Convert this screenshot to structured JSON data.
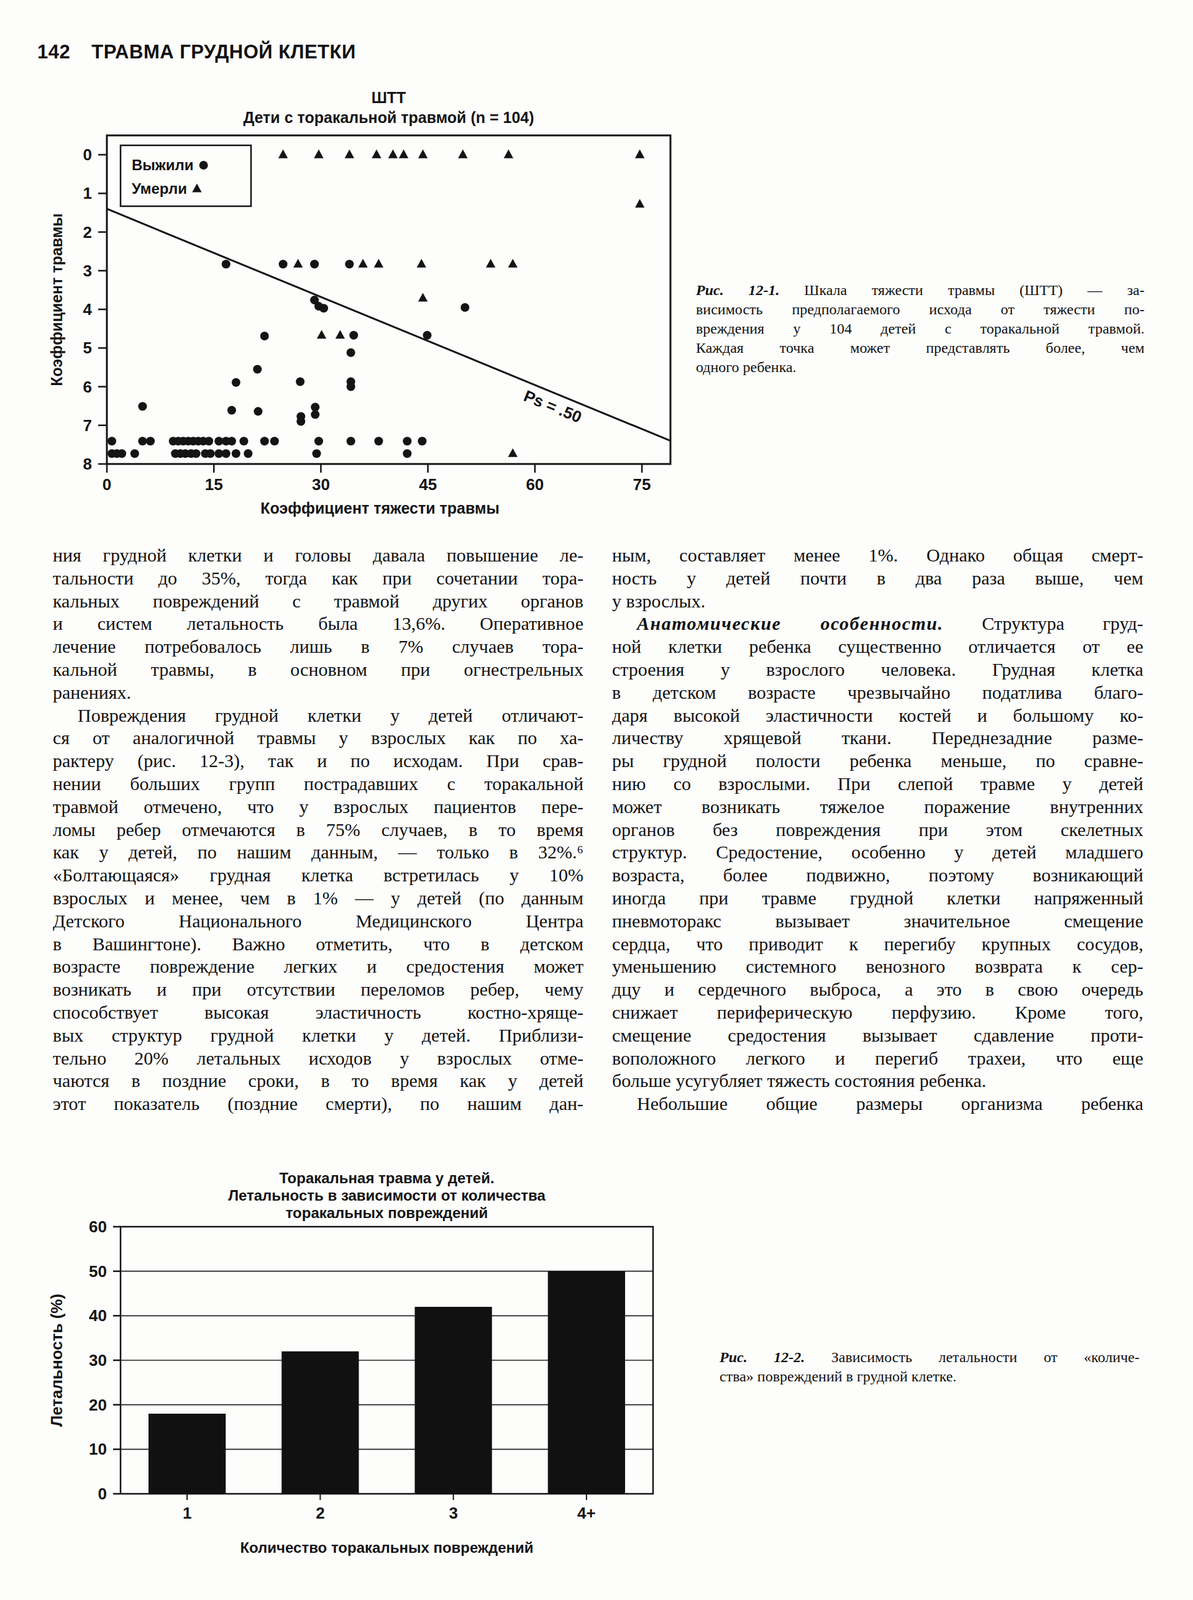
{
  "page": {
    "number": "142",
    "running_head": "ТРАВМА ГРУДНОЙ КЛЕТКИ"
  },
  "chart_data": [
    {
      "type": "scatter",
      "title": "ШТТ",
      "subtitle": "Дети с торакальной травмой (n = 104)",
      "x_label": "Коэффициент тяжести травмы",
      "y_label": "Коэффициент травмы",
      "xlim": [
        0,
        79
      ],
      "xticks": [
        0,
        15,
        30,
        45,
        60,
        75
      ],
      "ylim": [
        8,
        -0.5
      ],
      "yticks": [
        0,
        1,
        2,
        3,
        4,
        5,
        6,
        7,
        8
      ],
      "legend": "upper left",
      "series": [
        {
          "name": "Выжили",
          "marker": "circle",
          "color": "#141414",
          "x": [
            16.7,
            24.7,
            29.1,
            34.0,
            29.1,
            29.7,
            30.4,
            50.2,
            22.1,
            34.6,
            44.9,
            34.2,
            21.1,
            18.1,
            27.1,
            34.2,
            34.2,
            5.0,
            17.5,
            21.2,
            29.2,
            29.2,
            27.2,
            27.2,
            0.7,
            5.0,
            6.1,
            9.3,
            10.0,
            10.7,
            11.4,
            12.1,
            12.8,
            13.5,
            14.3,
            15.7,
            16.7,
            17.5,
            19.2,
            22.1,
            23.5,
            29.7,
            34.2,
            38.1,
            42.1,
            44.2,
            0.7,
            1.4,
            2.1,
            3.9,
            9.6,
            10.3,
            11.0,
            11.8,
            12.5,
            13.8,
            14.5,
            15.7,
            16.7,
            18.1,
            19.8,
            29.4,
            42.1
          ],
          "values": [
            2.83,
            2.83,
            2.83,
            2.83,
            3.76,
            3.92,
            3.97,
            3.95,
            4.69,
            4.67,
            4.67,
            5.12,
            5.55,
            5.89,
            5.87,
            5.87,
            6.0,
            6.51,
            6.61,
            6.64,
            6.53,
            6.72,
            6.77,
            6.9,
            7.41,
            7.41,
            7.41,
            7.41,
            7.41,
            7.41,
            7.41,
            7.41,
            7.41,
            7.41,
            7.41,
            7.41,
            7.41,
            7.41,
            7.41,
            7.41,
            7.41,
            7.41,
            7.41,
            7.41,
            7.41,
            7.41,
            7.73,
            7.73,
            7.73,
            7.73,
            7.73,
            7.73,
            7.73,
            7.73,
            7.73,
            7.73,
            7.73,
            7.73,
            7.73,
            7.73,
            7.73,
            7.73,
            7.73
          ]
        },
        {
          "name": "Умерли",
          "marker": "triangle",
          "color": "#141414",
          "x": [
            24.7,
            29.7,
            34.0,
            37.8,
            40.1,
            41.6,
            44.3,
            49.9,
            56.3,
            74.7,
            74.7,
            26.8,
            35.9,
            38.1,
            44.1,
            53.8,
            56.9,
            44.3,
            30.1,
            32.7,
            56.9
          ],
          "values": [
            0,
            0,
            0,
            0,
            0,
            0,
            0,
            0,
            0,
            0,
            1.28,
            2.83,
            2.83,
            2.83,
            2.83,
            2.83,
            2.83,
            3.71,
            4.67,
            4.67,
            7.73
          ]
        }
      ],
      "lines": [
        {
          "name": "Ps = .50",
          "color": "#141414",
          "x": [
            0,
            79
          ],
          "values": [
            1.4,
            7.4
          ]
        }
      ]
    },
    {
      "type": "bar",
      "title": [
        "Торакальная травма у детей.",
        "Летальность в зависимости от количества",
        "торакальных повреждений"
      ],
      "x_label": "Количество торакальных повреждений",
      "y_label": "Летальность (%)",
      "categories": [
        "1",
        "2",
        "3",
        "4+"
      ],
      "values": [
        18,
        32,
        42,
        50
      ],
      "color": "#111111",
      "ylim": [
        0,
        60
      ],
      "yticks": [
        0,
        10,
        20,
        30,
        40,
        50,
        60
      ],
      "grid": true
    }
  ],
  "captions": [
    {
      "label": "Рис. 12-1.",
      "lines": [
        "Шкала тяжести травмы (ШТТ) — за-",
        "висимость предполагаемого исхода от тяжести по-",
        "вреждения у 104 детей с торакальной травмой.",
        "Каждая точка может представлять более, чем",
        "одного ребенка."
      ]
    },
    {
      "label": "Рис. 12-2.",
      "lines": [
        "Зависимость летальности от «количе-",
        "ства» повреждений в грудной клетке."
      ]
    }
  ],
  "columns": [
    [
      {
        "indent": false,
        "continues": false,
        "lines": [
          "ния грудной клетки и головы давала повышение ле-",
          "тальности до 35%, тогда как при сочетании тора-",
          "кальных повреждений с травмой других органов",
          "и систем летальность была 13,6%. Оперативное",
          "лечение потребовалось лишь в 7% случаев тора-",
          "кальной травмы, в основном при огнестрельных",
          "ранениях."
        ]
      },
      {
        "indent": true,
        "continues": true,
        "lines": [
          "Повреждения грудной клетки у детей отличают-",
          "ся от аналогичной травмы у взрослых как по ха-",
          "рактеру (рис. 12-3), так и по исходам. При срав-",
          "нении больших групп пострадавших с торакальной",
          "травмой отмечено, что у взрослых пациентов пере-",
          "ломы ребер отмечаются в 75% случаев, в то время",
          "как у детей, по нашим данным, — только в 32%.⁶",
          "«Болтающаяся» грудная клетка встретилась у 10%",
          "взрослых и менее, чем в 1% — у детей (по данным",
          "Детского Национального Медицинского Центра",
          "в Вашингтоне). Важно отметить, что в детском",
          "возрасте повреждение легких и средостения может",
          "возникать и при отсутствии переломов ребер, чему",
          "способствует высокая эластичность костно-хряще-",
          "вых структур грудной клетки у детей. Приблизи-",
          "тельно 20% летальных исходов у взрослых отме-",
          "чаются в поздние сроки, в то время как у детей",
          "этот показатель (поздние смерти), по нашим дан-"
        ]
      }
    ],
    [
      {
        "indent": false,
        "continues": false,
        "lines": [
          "ным, составляет менее 1%. Однако общая смерт-",
          "ность у детей почти в два раза выше, чем",
          "у взрослых."
        ]
      },
      {
        "indent": true,
        "continues": false,
        "lead": "Анатомические особенности.",
        "lines": [
          "Структура груд-",
          "ной клетки ребенка существенно отличается от ее",
          "строения у взрослого человека. Грудная клетка",
          "в детском возрасте чрезвычайно податлива благо-",
          "даря высокой эластичности костей и большому ко-",
          "личеству хрящевой ткани. Переднезадние разме-",
          "ры грудной полости ребенка меньше, по сравне-",
          "нию со взрослыми. При слепой травме у детей",
          "может возникать тяжелое поражение внутренних",
          "органов без повреждения при этом скелетных",
          "структур. Средостение, особенно у детей младшего",
          "возраста, более подвижно, поэтому возникающий",
          "иногда при травме грудной клетки напряженный",
          "пневмоторакс вызывает значительное смещение",
          "сердца, что приводит к перегибу крупных сосудов,",
          "уменьшению системного венозного возврата к сер-",
          "дцу и сердечного выброса, а это в свою очередь",
          "снижает периферическую перфузию. Кроме того,",
          "смещение средостения вызывает сдавление проти-",
          "воположного легкого и перегиб трахеи, что еще",
          "больше усугубляет тяжесть состояния ребенка."
        ]
      },
      {
        "indent": true,
        "continues": true,
        "lines": [
          "Небольшие общие размеры организма ребенка"
        ]
      }
    ]
  ]
}
